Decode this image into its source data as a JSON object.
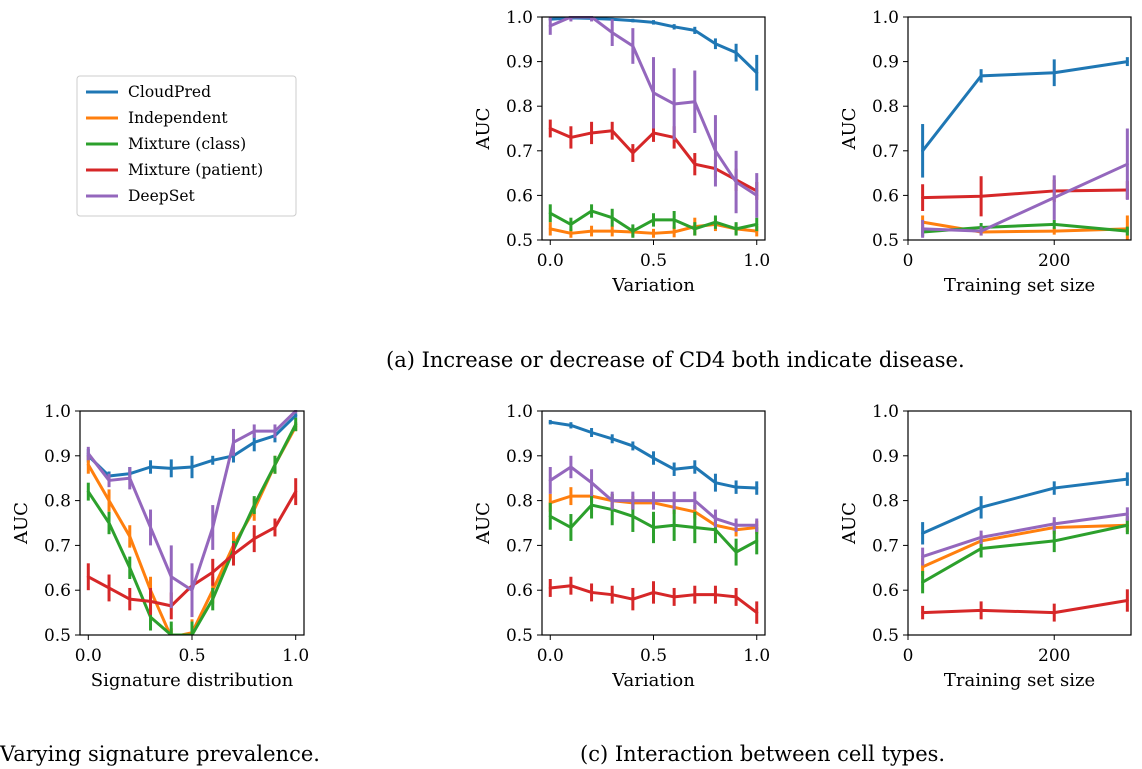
{
  "colors": {
    "CloudPred": "#1f77b4",
    "Independent": "#ff7f0e",
    "Mixture (class)": "#2ca02c",
    "Mixture (patient)": "#d62728",
    "DeepSet": "#9467bd"
  },
  "legend": {
    "placement": "top-left",
    "entries": [
      "CloudPred",
      "Independent",
      "Mixture (class)",
      "Mixture (patient)",
      "DeepSet"
    ]
  },
  "captions": {
    "a": "(a) Increase or decrease of CD4 both indicate disease.",
    "b": "Varying signature prevalence.",
    "c": "(c) Interaction between cell types."
  },
  "chart_data": [
    {
      "id": "a-variation",
      "type": "line",
      "xlabel": "Variation",
      "ylabel": "AUC",
      "xlim": [
        -0.04,
        1.04
      ],
      "ylim": [
        0.5,
        1.0
      ],
      "xticks": [
        0.0,
        0.5,
        1.0
      ],
      "xtick_labels": [
        "0.0",
        "0.5",
        "1.0"
      ],
      "yticks": [
        0.5,
        0.6,
        0.7,
        0.8,
        0.9,
        1.0
      ],
      "ytick_labels": [
        "0.5",
        "0.6",
        "0.7",
        "0.8",
        "0.9",
        "1.0"
      ],
      "x": [
        0.0,
        0.1,
        0.2,
        0.3,
        0.4,
        0.5,
        0.6,
        0.7,
        0.8,
        0.9,
        1.0
      ],
      "series": [
        {
          "name": "CloudPred",
          "values": [
            0.995,
            0.998,
            0.997,
            0.995,
            0.992,
            0.988,
            0.978,
            0.97,
            0.94,
            0.92,
            0.875
          ],
          "err": [
            0.003,
            0.002,
            0.002,
            0.003,
            0.004,
            0.005,
            0.006,
            0.008,
            0.012,
            0.02,
            0.04
          ]
        },
        {
          "name": "Independent",
          "values": [
            0.525,
            0.515,
            0.52,
            0.52,
            0.518,
            0.515,
            0.518,
            0.53,
            0.535,
            0.525,
            0.52
          ],
          "err": [
            0.015,
            0.01,
            0.012,
            0.012,
            0.01,
            0.01,
            0.012,
            0.02,
            0.015,
            0.012,
            0.012
          ]
        },
        {
          "name": "Mixture (class)",
          "values": [
            0.56,
            0.535,
            0.565,
            0.55,
            0.52,
            0.545,
            0.545,
            0.525,
            0.54,
            0.525,
            0.535
          ],
          "err": [
            0.02,
            0.015,
            0.015,
            0.02,
            0.015,
            0.015,
            0.02,
            0.015,
            0.015,
            0.015,
            0.015
          ]
        },
        {
          "name": "Mixture (patient)",
          "values": [
            0.75,
            0.73,
            0.74,
            0.745,
            0.695,
            0.74,
            0.73,
            0.67,
            0.66,
            0.635,
            0.61
          ],
          "err": [
            0.02,
            0.025,
            0.025,
            0.02,
            0.02,
            0.02,
            0.025,
            0.025,
            0.02,
            0.025,
            0.02
          ]
        },
        {
          "name": "DeepSet",
          "values": [
            0.98,
            1.0,
            1.0,
            0.965,
            0.935,
            0.83,
            0.805,
            0.81,
            0.7,
            0.63,
            0.6
          ],
          "err": [
            0.02,
            0.01,
            0.01,
            0.03,
            0.04,
            0.08,
            0.08,
            0.07,
            0.08,
            0.07,
            0.05
          ]
        }
      ]
    },
    {
      "id": "a-training",
      "type": "line",
      "xlabel": "Training set size",
      "ylabel": "AUC",
      "xlim": [
        0,
        305
      ],
      "ylim": [
        0.5,
        1.0
      ],
      "xticks": [
        0,
        200
      ],
      "xtick_labels": [
        "0",
        "200"
      ],
      "yticks": [
        0.5,
        0.6,
        0.7,
        0.8,
        0.9,
        1.0
      ],
      "ytick_labels": [
        "0.5",
        "0.6",
        "0.7",
        "0.8",
        "0.9",
        "1.0"
      ],
      "x": [
        20,
        100,
        200,
        300
      ],
      "series": [
        {
          "name": "CloudPred",
          "values": [
            0.7,
            0.868,
            0.875,
            0.9
          ],
          "err": [
            0.06,
            0.015,
            0.03,
            0.01
          ]
        },
        {
          "name": "Independent",
          "values": [
            0.54,
            0.518,
            0.52,
            0.525
          ],
          "err": [
            0.015,
            0.008,
            0.008,
            0.03
          ]
        },
        {
          "name": "Mixture (class)",
          "values": [
            0.518,
            0.528,
            0.535,
            0.52
          ],
          "err": [
            0.01,
            0.01,
            0.01,
            0.01
          ]
        },
        {
          "name": "Mixture (patient)",
          "values": [
            0.595,
            0.598,
            0.61,
            0.612
          ],
          "err": [
            0.03,
            0.045,
            0.025,
            0.02
          ]
        },
        {
          "name": "DeepSet",
          "values": [
            0.525,
            0.52,
            0.595,
            0.67
          ],
          "err": [
            0.02,
            0.01,
            0.05,
            0.08
          ]
        }
      ]
    },
    {
      "id": "b-signature",
      "type": "line",
      "xlabel": "Signature distribution",
      "ylabel": "AUC",
      "xlim": [
        -0.04,
        1.04
      ],
      "ylim": [
        0.5,
        1.0
      ],
      "xticks": [
        0.0,
        0.5,
        1.0
      ],
      "xtick_labels": [
        "0.0",
        "0.5",
        "1.0"
      ],
      "yticks": [
        0.5,
        0.6,
        0.7,
        0.8,
        0.9,
        1.0
      ],
      "ytick_labels": [
        "0.5",
        "0.6",
        "0.7",
        "0.8",
        "0.9",
        "1.0"
      ],
      "x": [
        0.0,
        0.1,
        0.2,
        0.3,
        0.4,
        0.5,
        0.6,
        0.7,
        0.8,
        0.9,
        1.0
      ],
      "series": [
        {
          "name": "CloudPred",
          "values": [
            0.9,
            0.855,
            0.86,
            0.875,
            0.872,
            0.875,
            0.89,
            0.9,
            0.93,
            0.945,
            0.99
          ],
          "err": [
            0.015,
            0.01,
            0.015,
            0.015,
            0.02,
            0.025,
            0.01,
            0.015,
            0.02,
            0.015,
            0.005
          ]
        },
        {
          "name": "Independent",
          "values": [
            0.88,
            0.8,
            0.72,
            0.6,
            0.495,
            0.505,
            0.6,
            0.7,
            0.78,
            0.88,
            0.965
          ],
          "err": [
            0.02,
            0.025,
            0.025,
            0.03,
            0.02,
            0.03,
            0.03,
            0.03,
            0.025,
            0.02,
            0.01
          ]
        },
        {
          "name": "Mixture (class)",
          "values": [
            0.82,
            0.75,
            0.65,
            0.54,
            0.5,
            0.5,
            0.58,
            0.69,
            0.79,
            0.88,
            0.97
          ],
          "err": [
            0.02,
            0.025,
            0.025,
            0.03,
            0.03,
            0.03,
            0.025,
            0.02,
            0.02,
            0.02,
            0.015
          ]
        },
        {
          "name": "Mixture (patient)",
          "values": [
            0.63,
            0.605,
            0.58,
            0.575,
            0.565,
            0.61,
            0.64,
            0.68,
            0.715,
            0.74,
            0.82
          ],
          "err": [
            0.03,
            0.03,
            0.025,
            0.03,
            0.03,
            0.03,
            0.03,
            0.025,
            0.03,
            0.02,
            0.03
          ]
        },
        {
          "name": "DeepSet",
          "values": [
            0.905,
            0.845,
            0.85,
            0.74,
            0.63,
            0.6,
            0.74,
            0.93,
            0.955,
            0.955,
            1.0
          ],
          "err": [
            0.015,
            0.015,
            0.025,
            0.04,
            0.07,
            0.06,
            0.05,
            0.03,
            0.015,
            0.015,
            0.005
          ]
        }
      ]
    },
    {
      "id": "c-variation",
      "type": "line",
      "xlabel": "Variation",
      "ylabel": "AUC",
      "xlim": [
        -0.04,
        1.04
      ],
      "ylim": [
        0.5,
        1.0
      ],
      "xticks": [
        0.0,
        0.5,
        1.0
      ],
      "xtick_labels": [
        "0.0",
        "0.5",
        "1.0"
      ],
      "yticks": [
        0.5,
        0.6,
        0.7,
        0.8,
        0.9,
        1.0
      ],
      "ytick_labels": [
        "0.5",
        "0.6",
        "0.7",
        "0.8",
        "0.9",
        "1.0"
      ],
      "x": [
        0.0,
        0.1,
        0.2,
        0.3,
        0.4,
        0.5,
        0.6,
        0.7,
        0.8,
        0.9,
        1.0
      ],
      "series": [
        {
          "name": "CloudPred",
          "values": [
            0.975,
            0.968,
            0.952,
            0.938,
            0.922,
            0.895,
            0.87,
            0.875,
            0.84,
            0.83,
            0.828
          ],
          "err": [
            0.005,
            0.007,
            0.01,
            0.01,
            0.01,
            0.015,
            0.015,
            0.015,
            0.02,
            0.015,
            0.015
          ]
        },
        {
          "name": "Independent",
          "values": [
            0.795,
            0.81,
            0.81,
            0.8,
            0.795,
            0.795,
            0.785,
            0.775,
            0.745,
            0.735,
            0.74
          ],
          "err": [
            0.02,
            0.02,
            0.015,
            0.015,
            0.015,
            0.015,
            0.015,
            0.015,
            0.02,
            0.015,
            0.015
          ]
        },
        {
          "name": "Mixture (class)",
          "values": [
            0.765,
            0.74,
            0.79,
            0.78,
            0.765,
            0.74,
            0.745,
            0.74,
            0.735,
            0.685,
            0.71
          ],
          "err": [
            0.03,
            0.03,
            0.03,
            0.035,
            0.035,
            0.035,
            0.035,
            0.035,
            0.03,
            0.03,
            0.03
          ]
        },
        {
          "name": "Mixture (patient)",
          "values": [
            0.605,
            0.61,
            0.595,
            0.59,
            0.58,
            0.595,
            0.585,
            0.59,
            0.59,
            0.585,
            0.55
          ],
          "err": [
            0.02,
            0.02,
            0.02,
            0.02,
            0.025,
            0.025,
            0.02,
            0.02,
            0.02,
            0.02,
            0.025
          ]
        },
        {
          "name": "DeepSet",
          "values": [
            0.845,
            0.875,
            0.84,
            0.8,
            0.8,
            0.8,
            0.8,
            0.8,
            0.76,
            0.745,
            0.745
          ],
          "err": [
            0.03,
            0.025,
            0.03,
            0.02,
            0.02,
            0.02,
            0.02,
            0.02,
            0.02,
            0.015,
            0.015
          ]
        }
      ]
    },
    {
      "id": "c-training",
      "type": "line",
      "xlabel": "Training set size",
      "ylabel": "AUC",
      "xlim": [
        0,
        305
      ],
      "ylim": [
        0.5,
        1.0
      ],
      "xticks": [
        0,
        200
      ],
      "xtick_labels": [
        "0",
        "200"
      ],
      "yticks": [
        0.5,
        0.6,
        0.7,
        0.8,
        0.9,
        1.0
      ],
      "ytick_labels": [
        "0.5",
        "0.6",
        "0.7",
        "0.8",
        "0.9",
        "1.0"
      ],
      "x": [
        20,
        100,
        200,
        300
      ],
      "series": [
        {
          "name": "CloudPred",
          "values": [
            0.727,
            0.785,
            0.828,
            0.848
          ],
          "err": [
            0.025,
            0.025,
            0.015,
            0.015
          ]
        },
        {
          "name": "Independent",
          "values": [
            0.652,
            0.71,
            0.74,
            0.745
          ],
          "err": [
            0.02,
            0.015,
            0.015,
            0.015
          ]
        },
        {
          "name": "Mixture (class)",
          "values": [
            0.618,
            0.693,
            0.71,
            0.745
          ],
          "err": [
            0.025,
            0.02,
            0.025,
            0.02
          ]
        },
        {
          "name": "Mixture (patient)",
          "values": [
            0.55,
            0.555,
            0.55,
            0.577
          ],
          "err": [
            0.015,
            0.02,
            0.02,
            0.025
          ]
        },
        {
          "name": "DeepSet",
          "values": [
            0.675,
            0.718,
            0.748,
            0.77
          ],
          "err": [
            0.02,
            0.015,
            0.015,
            0.015
          ]
        }
      ]
    }
  ]
}
